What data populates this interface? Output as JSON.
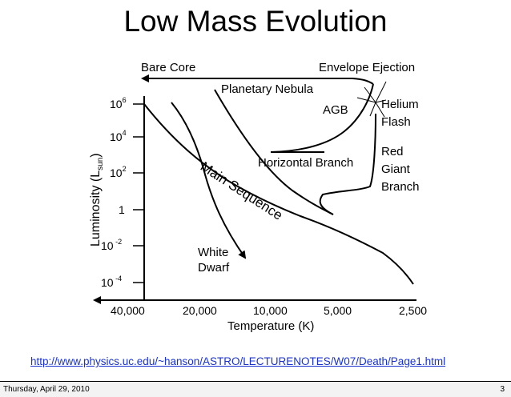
{
  "slide": {
    "title": "Low Mass Evolution",
    "link": "http://www.physics.uc.edu/~hanson/ASTRO/LECTURENOTES/W07/Death/Page1.html",
    "footer_date": "Thursday, April 29, 2010",
    "page_number": "3"
  },
  "diagram": {
    "y_axis_label": "Luminosity (L",
    "y_axis_label_sub": "sun",
    "y_axis_label_end": ")",
    "y_ticks": [
      {
        "base": "10",
        "exp": "6"
      },
      {
        "base": "10",
        "exp": "4"
      },
      {
        "base": "10",
        "exp": "2"
      },
      {
        "base": "1",
        "exp": ""
      },
      {
        "base": "10",
        "exp": " -2"
      },
      {
        "base": "10",
        "exp": " -4"
      }
    ],
    "x_axis_label": "Temperature (K)",
    "x_ticks": [
      "40,000",
      "20,000",
      "10,000",
      "5,000",
      "2,500"
    ],
    "labels": {
      "bare_core": "Bare Core",
      "envelope_ejection": "Envelope Ejection",
      "planetary_nebula": "Planetary Nebula",
      "agb": "AGB",
      "helium_flash_1": "Helium",
      "helium_flash_2": "Flash",
      "horizontal_branch": "Horizontal Branch",
      "red_giant_1": "Red",
      "red_giant_2": "Giant",
      "red_giant_3": "Branch",
      "main_sequence": "Main Sequence",
      "white_dwarf_1": "White",
      "white_dwarf_2": "Dwarf"
    }
  }
}
